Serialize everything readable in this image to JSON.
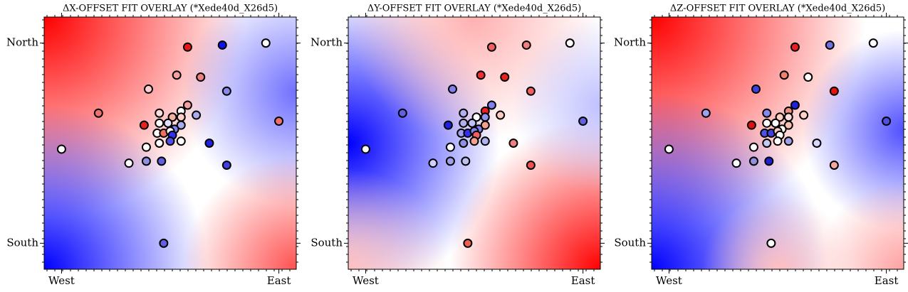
{
  "chart_data": [
    {
      "type": "scatter",
      "title": "ΔX-OFFSET FIT OVERLAY (*Xede40d_X26d5)",
      "x": [
        0.94,
        0.74,
        0.58,
        0.53,
        0.64,
        0.4,
        0.76,
        0.58,
        0.17,
        0.45,
        0.55,
        0.51,
        0.62,
        0.55,
        0.45,
        0.49,
        0.55,
        0.38,
        1.0,
        0.52,
        0.44,
        0.47,
        0.5,
        0.51,
        0.5,
        0.45,
        0.55,
        0.68,
        0.0,
        0.39,
        0.31,
        0.39,
        0.46,
        0.76,
        0.47
      ],
      "y": [
        1.0,
        0.99,
        0.98,
        0.84,
        0.83,
        0.77,
        0.76,
        0.69,
        0.65,
        0.65,
        0.66,
        0.63,
        0.64,
        0.63,
        0.6,
        0.6,
        0.59,
        0.59,
        0.61,
        0.57,
        0.55,
        0.55,
        0.56,
        0.54,
        0.51,
        0.5,
        0.51,
        0.5,
        0.47,
        0.48,
        0.4,
        0.41,
        0.41,
        0.39,
        0.0
      ],
      "colors": [
        "#ffffff",
        "#1010e8",
        "#e81818",
        "#f4a0a0",
        "#f08080",
        "#ffd0d0",
        "#8888ee",
        "#f4a0a0",
        "#f07070",
        "#ffdcdc",
        "#ffffff",
        "#f4b0a0",
        "#aaaaee",
        "#ffd0c8",
        "#ffffff",
        "#e0e0ff",
        "#aaaaee",
        "#e82020",
        "#f07070",
        "#8080f0",
        "#ffffff",
        "#f07060",
        "#ffffff",
        "#3030f0",
        "#5050e8",
        "#ffffff",
        "#ffffff",
        "#2020e0",
        "#ffffff",
        "#ffffff",
        "#ffffff",
        "#9090e0",
        "#6060e0",
        "#4040e0",
        "#6060e0"
      ],
      "xlim": [
        -0.08,
        1.08
      ],
      "ylim": [
        -0.13,
        1.13
      ],
      "xticks": [
        {
          "value": 0,
          "label": "West"
        },
        {
          "value": 1,
          "label": "East"
        }
      ],
      "yticks": [
        {
          "value": 0,
          "label": "South"
        },
        {
          "value": 1,
          "label": "North"
        }
      ]
    },
    {
      "type": "scatter",
      "title": "ΔY-OFFSET FIT OVERLAY (*Xede40d_X26d5)",
      "x": [
        0.94,
        0.74,
        0.58,
        0.53,
        0.64,
        0.4,
        0.76,
        0.58,
        0.17,
        0.45,
        0.55,
        0.51,
        0.62,
        0.55,
        0.45,
        0.49,
        0.55,
        0.38,
        1.0,
        0.52,
        0.44,
        0.47,
        0.5,
        0.51,
        0.5,
        0.45,
        0.55,
        0.68,
        0.0,
        0.39,
        0.31,
        0.39,
        0.46,
        0.76,
        0.47
      ],
      "y": [
        1.0,
        0.99,
        0.98,
        0.84,
        0.83,
        0.77,
        0.76,
        0.69,
        0.65,
        0.65,
        0.66,
        0.63,
        0.64,
        0.63,
        0.6,
        0.6,
        0.59,
        0.59,
        0.61,
        0.57,
        0.55,
        0.55,
        0.56,
        0.54,
        0.51,
        0.5,
        0.51,
        0.5,
        0.47,
        0.48,
        0.4,
        0.41,
        0.41,
        0.39,
        0.0
      ],
      "colors": [
        "#ffffff",
        "#f08080",
        "#f06060",
        "#f03030",
        "#e82020",
        "#8080f0",
        "#f06060",
        "#8080f0",
        "#6060e0",
        "#b0b0f0",
        "#f02020",
        "#ffffff",
        "#ffc8c0",
        "#9090f0",
        "#b0b0f0",
        "#c0c0ff",
        "#f4a090",
        "#2020e0",
        "#6060e0",
        "#8080f0",
        "#a0a0f0",
        "#3030f0",
        "#8080f0",
        "#f06060",
        "#f4a090",
        "#9090e0",
        "#b0b0f0",
        "#f08080",
        "#ffffff",
        "#ffffff",
        "#d0d0ff",
        "#a0a0e8",
        "#c0c0f0",
        "#f05050",
        "#f06050"
      ],
      "xlim": [
        -0.08,
        1.08
      ],
      "ylim": [
        -0.13,
        1.13
      ],
      "xticks": [
        {
          "value": 0,
          "label": "West"
        },
        {
          "value": 1,
          "label": "East"
        }
      ],
      "yticks": [
        {
          "value": 0,
          "label": "South"
        },
        {
          "value": 1,
          "label": "North"
        }
      ]
    },
    {
      "type": "scatter",
      "title": "ΔZ-OFFSET FIT OVERLAY (*Xede40d_X26d5)",
      "x": [
        0.94,
        0.74,
        0.58,
        0.53,
        0.64,
        0.4,
        0.76,
        0.58,
        0.17,
        0.45,
        0.55,
        0.51,
        0.62,
        0.55,
        0.45,
        0.49,
        0.55,
        0.38,
        1.0,
        0.52,
        0.44,
        0.47,
        0.5,
        0.51,
        0.5,
        0.45,
        0.55,
        0.68,
        0.0,
        0.39,
        0.31,
        0.39,
        0.46,
        0.76,
        0.47
      ],
      "y": [
        1.0,
        0.99,
        0.98,
        0.84,
        0.83,
        0.77,
        0.76,
        0.69,
        0.65,
        0.65,
        0.66,
        0.63,
        0.64,
        0.63,
        0.6,
        0.6,
        0.59,
        0.59,
        0.61,
        0.57,
        0.55,
        0.55,
        0.56,
        0.54,
        0.51,
        0.5,
        0.51,
        0.5,
        0.47,
        0.48,
        0.4,
        0.41,
        0.41,
        0.39,
        0.0
      ],
      "colors": [
        "#ffffff",
        "#7070e0",
        "#e82020",
        "#f08070",
        "#ffffff",
        "#4040e0",
        "#e81010",
        "#2020e0",
        "#a0a0f0",
        "#8888ee",
        "#f09080",
        "#ffd0c0",
        "#ffd0c8",
        "#ffe0d8",
        "#ffffff",
        "#ffffff",
        "#f8c0b0",
        "#e01010",
        "#5050e0",
        "#ffffee",
        "#5050e8",
        "#4040e0",
        "#f8c8c0",
        "#ffffff",
        "#ffffff",
        "#c8c8f8",
        "#a0a0e8",
        "#d8d8ff",
        "#ffffff",
        "#ffffff",
        "#ffffff",
        "#9090e0",
        "#2020d0",
        "#f4a8a0",
        "#ffffff"
      ],
      "xlim": [
        -0.08,
        1.08
      ],
      "ylim": [
        -0.13,
        1.13
      ],
      "xticks": [
        {
          "value": 0,
          "label": "West"
        },
        {
          "value": 1,
          "label": "East"
        }
      ],
      "yticks": [
        {
          "value": 0,
          "label": "South"
        },
        {
          "value": 1,
          "label": "North"
        }
      ]
    }
  ]
}
